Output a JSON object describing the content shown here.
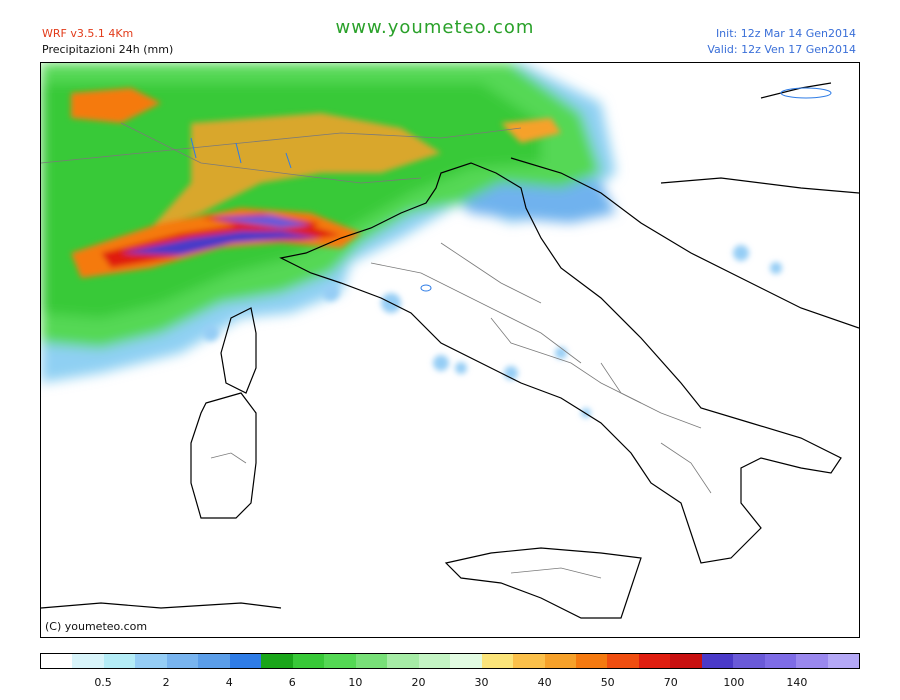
{
  "header": {
    "model": "WRF v3.5.1 4Km",
    "product": "Precipitazioni 24h (mm)",
    "site": "www.youmeteo.com",
    "init": "Init: 12z Mar  14 Gen2014",
    "valid": "Valid: 12z Ven  17 Gen2014"
  },
  "map": {
    "copyright": "(C) youmeteo.com",
    "region": "Italia"
  },
  "legend": {
    "colors": [
      "#ffffff",
      "#d8f4fa",
      "#b4ecf6",
      "#95cdf5",
      "#78b4ef",
      "#5b9ee9",
      "#2e7ce6",
      "#1aa61a",
      "#38c938",
      "#54d854",
      "#78e078",
      "#a6eca6",
      "#c4f4c4",
      "#e2fbe2",
      "#fbe47a",
      "#fbc04a",
      "#f6a12a",
      "#f57a10",
      "#f04e10",
      "#e01e10",
      "#c81010",
      "#4a3ac8",
      "#6a5ad8",
      "#7e6ce6",
      "#9a88ee",
      "#b4a8f6"
    ],
    "labels": [
      {
        "text": "0.5",
        "at": 2
      },
      {
        "text": "2",
        "at": 4
      },
      {
        "text": "4",
        "at": 6
      },
      {
        "text": "6",
        "at": 8
      },
      {
        "text": "10",
        "at": 10
      },
      {
        "text": "20",
        "at": 12
      },
      {
        "text": "30",
        "at": 14
      },
      {
        "text": "40",
        "at": 16
      },
      {
        "text": "50",
        "at": 18
      },
      {
        "text": "70",
        "at": 20
      },
      {
        "text": "100",
        "at": 22
      },
      {
        "text": "140",
        "at": 24
      }
    ]
  }
}
